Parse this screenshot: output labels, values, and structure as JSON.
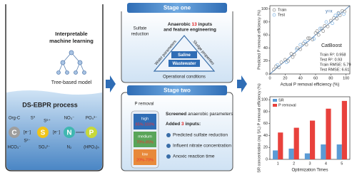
{
  "left": {
    "title_lines": [
      "Interpretable",
      "machine learning"
    ],
    "model": "Tree-based model",
    "process": "DS-EBPR process",
    "elements": [
      "C",
      "S",
      "N",
      "P"
    ],
    "electron": "[e⁻]",
    "species": {
      "org_c": "Org-C",
      "hco3": "HCO₃⁻",
      "s0": "S⁰",
      "s6": "S⁶⁺",
      "s2": "S²⁻",
      "so4": "SO₄²⁻",
      "no3": "NO₃⁻",
      "n2": "N₂",
      "po4": "PO₄³⁻",
      "hpo3": "(HPO₃)ₙ"
    }
  },
  "stage_one": {
    "header": "Stage one",
    "sulfate": [
      "Sulfate",
      "reduction"
    ],
    "inputs": [
      "Anaerobic ",
      "13",
      " inputs",
      "and feature engineering"
    ],
    "triangle": {
      "left": "Water parameters",
      "right": "Sludge properties",
      "bottom": "Operational conditions",
      "center": [
        "Saline",
        "Wastewater"
      ]
    }
  },
  "stage_two": {
    "header": "Stage two",
    "p_removal": "P removal",
    "levels": [
      {
        "name": "high",
        "range": "85%-100%"
      },
      {
        "name": "medium",
        "range": "70%-85%"
      },
      {
        "name": "low",
        "range": "20%-70%"
      }
    ],
    "screened": [
      "Screened",
      " anaerobic parameters"
    ],
    "added": [
      "Added ",
      "3",
      " inputs:"
    ],
    "inputs": [
      "Predicted sulfate reduction",
      "Influent nitrate concentration",
      "Anoxic reaction time"
    ]
  },
  "chart_data": [
    {
      "type": "scatter",
      "xlabel": "Actual P removal efficiency (%)",
      "ylabel": "Predicted P removal efficiency (%)",
      "xlim": [
        0,
        105
      ],
      "ylim": [
        0,
        105
      ],
      "xticks": [
        0,
        20,
        40,
        60,
        80,
        100
      ],
      "yticks": [
        0,
        20,
        40,
        60,
        80,
        100
      ],
      "series": [
        {
          "name": "Train",
          "color": "#8c8c8c",
          "x": [
            5,
            8,
            12,
            15,
            20,
            24,
            28,
            32,
            36,
            40,
            44,
            48,
            52,
            56,
            60,
            64,
            68,
            72,
            76,
            80,
            84,
            88,
            92,
            95,
            98,
            30,
            50,
            70,
            90,
            62
          ],
          "y": [
            7,
            12,
            10,
            18,
            22,
            20,
            31,
            30,
            40,
            38,
            47,
            45,
            55,
            53,
            63,
            60,
            70,
            74,
            73,
            82,
            86,
            85,
            90,
            97,
            96,
            26,
            55,
            66,
            94,
            66
          ]
        },
        {
          "name": "Test",
          "color": "#7fb3e3",
          "x": [
            10,
            22,
            35,
            46,
            58,
            66,
            74,
            82,
            90,
            97,
            40,
            86
          ],
          "y": [
            14,
            18,
            38,
            50,
            54,
            70,
            80,
            78,
            93,
            92,
            45,
            90
          ]
        }
      ],
      "annotations": [
        "y=x",
        "CatBoost",
        "Train R²: 0.958",
        "Test R²: 0.93",
        "Train RMSE: 5.79",
        "Test RMSE: 6.61"
      ]
    },
    {
      "type": "bar",
      "xlabel": "Optimization Times",
      "ylabel": "SR concentration (mg S/L) P removal efficiency (%)",
      "categories": [
        "1",
        "2",
        "3",
        "4",
        "5"
      ],
      "ylim": [
        0,
        105
      ],
      "yticks": [
        0,
        20,
        40,
        60,
        80,
        100
      ],
      "series": [
        {
          "name": "SR",
          "color": "#5b9bd5",
          "values": [
            15,
            18,
            10,
            25,
            25
          ]
        },
        {
          "name": "P removal",
          "color": "#e8413c",
          "values": [
            45,
            53,
            65,
            85,
            98
          ]
        }
      ]
    }
  ]
}
